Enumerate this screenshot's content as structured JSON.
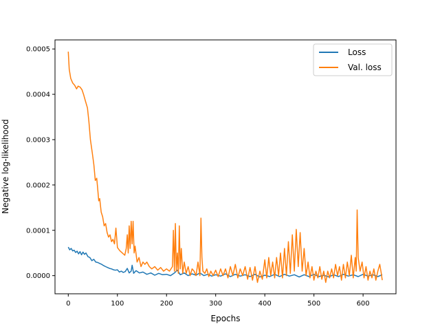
{
  "chart_data": {
    "type": "line",
    "title": "",
    "xlabel": "Epochs",
    "ylabel": "Negative log-likelihood",
    "xlim": [
      -27,
      667
    ],
    "ylim": [
      -4e-05,
      0.00052
    ],
    "xticks": [
      0,
      100,
      200,
      300,
      400,
      500,
      600
    ],
    "xtick_labels": [
      "0",
      "100",
      "200",
      "300",
      "400",
      "500",
      "600"
    ],
    "yticks": [
      0.0,
      0.0001,
      0.0002,
      0.0003,
      0.0004,
      0.0005
    ],
    "ytick_labels": [
      "0.0000",
      "0.0001",
      "0.0002",
      "0.0003",
      "0.0004",
      "0.0005"
    ],
    "grid": false,
    "legend_position": "upper right",
    "series": [
      {
        "name": "Loss",
        "color": "#1f77b4",
        "points": [
          [
            0,
            6.3e-05
          ],
          [
            3,
            5.7e-05
          ],
          [
            6,
            6e-05
          ],
          [
            9,
            5.45e-05
          ],
          [
            12,
            5.6e-05
          ],
          [
            15,
            5.1e-05
          ],
          [
            18,
            5.4e-05
          ],
          [
            21,
            4.8e-05
          ],
          [
            24,
            5.3e-05
          ],
          [
            27,
            4.6e-05
          ],
          [
            30,
            5.2e-05
          ],
          [
            33,
            4.7e-05
          ],
          [
            36,
            5e-05
          ],
          [
            40,
            4.2e-05
          ],
          [
            44,
            4e-05
          ],
          [
            48,
            3.3e-05
          ],
          [
            52,
            3.6e-05
          ],
          [
            56,
            3e-05
          ],
          [
            60,
            2.9e-05
          ],
          [
            64,
            2.7e-05
          ],
          [
            68,
            2.5e-05
          ],
          [
            72,
            2.2e-05
          ],
          [
            76,
            2e-05
          ],
          [
            80,
            1.8e-05
          ],
          [
            84,
            1.6e-05
          ],
          [
            88,
            1.5e-05
          ],
          [
            92,
            1.3e-05
          ],
          [
            96,
            1.2e-05
          ],
          [
            100,
            1.3e-05
          ],
          [
            104,
            8e-06
          ],
          [
            108,
            1e-05
          ],
          [
            112,
            7e-06
          ],
          [
            116,
            9e-06
          ],
          [
            120,
            1.6e-05
          ],
          [
            124,
            6e-06
          ],
          [
            128,
            1e-05
          ],
          [
            130,
            2.3e-05
          ],
          [
            133,
            5e-06
          ],
          [
            138,
            1.1e-05
          ],
          [
            145,
            6e-06
          ],
          [
            152,
            8e-06
          ],
          [
            160,
            3e-06
          ],
          [
            168,
            6e-06
          ],
          [
            176,
            1e-06
          ],
          [
            184,
            5e-06
          ],
          [
            192,
            2e-06
          ],
          [
            200,
            3e-06
          ],
          [
            208,
            0.0
          ],
          [
            216,
            6e-06
          ],
          [
            222,
            1.2e-05
          ],
          [
            228,
            2e-06
          ],
          [
            236,
            6e-06
          ],
          [
            244,
            0.0
          ],
          [
            252,
            4e-06
          ],
          [
            260,
            1e-06
          ],
          [
            268,
            6e-06
          ],
          [
            276,
            0.0
          ],
          [
            284,
            3e-06
          ],
          [
            292,
            -1e-06
          ],
          [
            300,
            2e-06
          ],
          [
            310,
            -1e-06
          ],
          [
            320,
            4e-06
          ],
          [
            330,
            -2e-06
          ],
          [
            340,
            3e-06
          ],
          [
            350,
            -1e-06
          ],
          [
            360,
            2e-06
          ],
          [
            370,
            -2e-06
          ],
          [
            380,
            3e-06
          ],
          [
            390,
            -3e-06
          ],
          [
            400,
            1e-06
          ],
          [
            410,
            -2e-06
          ],
          [
            420,
            3e-06
          ],
          [
            430,
            -2e-06
          ],
          [
            440,
            3e-06
          ],
          [
            450,
            -1e-06
          ],
          [
            460,
            2e-06
          ],
          [
            470,
            -3e-06
          ],
          [
            480,
            2e-06
          ],
          [
            490,
            -2e-06
          ],
          [
            500,
            3e-06
          ],
          [
            510,
            -2e-06
          ],
          [
            520,
            1e-06
          ],
          [
            530,
            -3e-06
          ],
          [
            540,
            2e-06
          ],
          [
            550,
            -2e-06
          ],
          [
            560,
            3e-06
          ],
          [
            570,
            -1e-06
          ],
          [
            580,
            2e-06
          ],
          [
            590,
            -2e-06
          ],
          [
            600,
            3e-06
          ],
          [
            610,
            -1e-06
          ],
          [
            620,
            2e-06
          ],
          [
            630,
            -2e-06
          ],
          [
            639,
            2e-06
          ]
        ]
      },
      {
        "name": "Val. loss",
        "color": "#ff7f0e",
        "points": [
          [
            0,
            0.000494
          ],
          [
            2,
            0.000455
          ],
          [
            5,
            0.000435
          ],
          [
            9,
            0.000425
          ],
          [
            13,
            0.00042
          ],
          [
            17,
            0.000412
          ],
          [
            20,
            0.000418
          ],
          [
            24,
            0.000416
          ],
          [
            28,
            0.00041
          ],
          [
            31,
            0.0004
          ],
          [
            35,
            0.000385
          ],
          [
            39,
            0.00037
          ],
          [
            42,
            0.00034
          ],
          [
            45,
            0.0003
          ],
          [
            49,
            0.00027
          ],
          [
            52,
            0.000245
          ],
          [
            55,
            0.00021
          ],
          [
            58,
            0.000215
          ],
          [
            60,
            0.00019
          ],
          [
            62,
            0.000165
          ],
          [
            64,
            0.00017
          ],
          [
            67,
            0.00014
          ],
          [
            70,
            0.00013
          ],
          [
            73,
            0.00011
          ],
          [
            76,
            0.000115
          ],
          [
            79,
            9.5e-05
          ],
          [
            82,
            8.5e-05
          ],
          [
            85,
            9e-05
          ],
          [
            88,
            7.5e-05
          ],
          [
            91,
            8e-05
          ],
          [
            94,
            7e-05
          ],
          [
            97,
            0.000105
          ],
          [
            100,
            6.2e-05
          ],
          [
            105,
            5.5e-05
          ],
          [
            110,
            5e-05
          ],
          [
            115,
            4.5e-05
          ],
          [
            118,
            6e-05
          ],
          [
            120,
            9e-05
          ],
          [
            122,
            5e-05
          ],
          [
            124,
            0.00011
          ],
          [
            126,
            6e-05
          ],
          [
            128,
            0.00012
          ],
          [
            130,
            7e-05
          ],
          [
            132,
            0.00012
          ],
          [
            134,
            5e-05
          ],
          [
            136,
            6.5e-05
          ],
          [
            140,
            3e-05
          ],
          [
            144,
            4e-05
          ],
          [
            148,
            2e-05
          ],
          [
            152,
            3e-05
          ],
          [
            156,
            2.5e-05
          ],
          [
            160,
            3e-05
          ],
          [
            165,
            2e-05
          ],
          [
            170,
            1.5e-05
          ],
          [
            176,
            2e-05
          ],
          [
            182,
            1.2e-05
          ],
          [
            188,
            1.8e-05
          ],
          [
            194,
            1e-05
          ],
          [
            200,
            1.5e-05
          ],
          [
            206,
            1e-05
          ],
          [
            212,
            2e-05
          ],
          [
            214,
            0.0001
          ],
          [
            216,
            1e-05
          ],
          [
            218,
            0.000115
          ],
          [
            220,
            1e-05
          ],
          [
            222,
            5e-05
          ],
          [
            224,
            5e-06
          ],
          [
            226,
            0.00011
          ],
          [
            228,
            1.5e-05
          ],
          [
            230,
            6e-05
          ],
          [
            233,
            5e-06
          ],
          [
            236,
            3e-05
          ],
          [
            240,
            5e-06
          ],
          [
            244,
            2e-05
          ],
          [
            248,
            0.0
          ],
          [
            252,
            1.5e-05
          ],
          [
            256,
            1e-05
          ],
          [
            260,
            0.0
          ],
          [
            264,
            3e-05
          ],
          [
            268,
            0.0
          ],
          [
            270,
            0.000127
          ],
          [
            272,
            4e-05
          ],
          [
            274,
            1e-05
          ],
          [
            278,
            5e-06
          ],
          [
            282,
            1.5e-05
          ],
          [
            286,
            -2e-06
          ],
          [
            290,
            1e-05
          ],
          [
            295,
            0.0
          ],
          [
            300,
            1.2e-05
          ],
          [
            305,
            -2e-06
          ],
          [
            310,
            1.5e-05
          ],
          [
            315,
            0.0
          ],
          [
            320,
            1.5e-05
          ],
          [
            325,
            -5e-06
          ],
          [
            330,
            2e-05
          ],
          [
            335,
            0.0
          ],
          [
            340,
            2.5e-05
          ],
          [
            345,
            -5e-06
          ],
          [
            350,
            1.5e-05
          ],
          [
            355,
            0.0
          ],
          [
            360,
            2e-05
          ],
          [
            365,
            -8e-06
          ],
          [
            370,
            1.8e-05
          ],
          [
            375,
            -1e-05
          ],
          [
            380,
            2e-05
          ],
          [
            385,
            -1.5e-05
          ],
          [
            390,
            1e-05
          ],
          [
            395,
            -8e-06
          ],
          [
            400,
            3.5e-05
          ],
          [
            404,
            -5e-06
          ],
          [
            408,
            4e-05
          ],
          [
            412,
            0.0
          ],
          [
            416,
            3e-05
          ],
          [
            420,
            -5e-06
          ],
          [
            424,
            4e-05
          ],
          [
            428,
            0.0
          ],
          [
            432,
            5e-05
          ],
          [
            436,
            -5e-06
          ],
          [
            440,
            6e-05
          ],
          [
            444,
            0.0
          ],
          [
            448,
            7.5e-05
          ],
          [
            452,
            5e-06
          ],
          [
            456,
            9e-05
          ],
          [
            460,
            1e-05
          ],
          [
            464,
            0.000102
          ],
          [
            468,
            2e-05
          ],
          [
            472,
            9.5e-05
          ],
          [
            476,
            1e-05
          ],
          [
            480,
            6e-05
          ],
          [
            484,
            0.0
          ],
          [
            488,
            3e-05
          ],
          [
            492,
            -5e-06
          ],
          [
            496,
            2e-05
          ],
          [
            500,
            -1e-05
          ],
          [
            504,
            1e-05
          ],
          [
            508,
            -5e-06
          ],
          [
            512,
            2e-05
          ],
          [
            516,
            -8e-06
          ],
          [
            520,
            1e-05
          ],
          [
            524,
            -1.5e-05
          ],
          [
            528,
            1e-05
          ],
          [
            532,
            -5e-06
          ],
          [
            536,
            1.5e-05
          ],
          [
            540,
            -5e-06
          ],
          [
            544,
            2.5e-05
          ],
          [
            548,
            0.0
          ],
          [
            552,
            2e-05
          ],
          [
            556,
            -1e-05
          ],
          [
            560,
            2.5e-05
          ],
          [
            564,
            -5e-06
          ],
          [
            568,
            3e-05
          ],
          [
            572,
            0.0
          ],
          [
            576,
            4.5e-05
          ],
          [
            580,
            -5e-06
          ],
          [
            584,
            4e-05
          ],
          [
            586,
            1e-05
          ],
          [
            588,
            0.000145
          ],
          [
            590,
            4e-05
          ],
          [
            594,
            1e-05
          ],
          [
            598,
            3e-05
          ],
          [
            602,
            -5e-06
          ],
          [
            606,
            2e-05
          ],
          [
            610,
            -1e-05
          ],
          [
            614,
            1e-05
          ],
          [
            618,
            -5e-06
          ],
          [
            622,
            1.5e-05
          ],
          [
            626,
            -1e-05
          ],
          [
            630,
            1e-05
          ],
          [
            634,
            2.5e-05
          ],
          [
            637,
            5e-06
          ],
          [
            639,
            -1e-05
          ]
        ]
      }
    ]
  }
}
